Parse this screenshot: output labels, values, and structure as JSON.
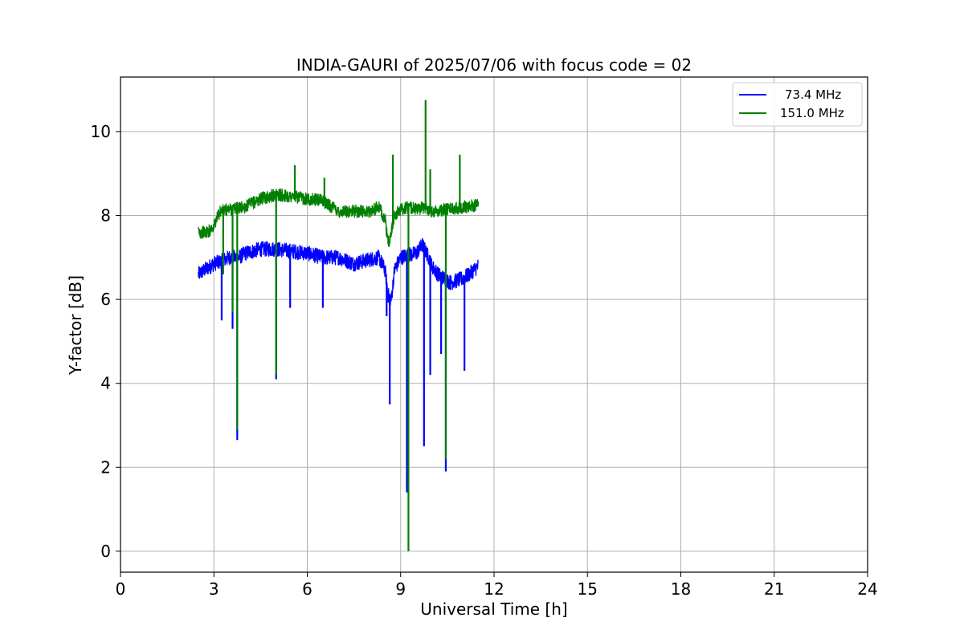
{
  "chart_data": {
    "type": "line",
    "title": "INDIA-GAURI of 2025/07/06 with focus code = 02",
    "xlabel": "Universal Time [h]",
    "ylabel": "Y-factor [dB]",
    "xlim": [
      0,
      24
    ],
    "ylim": [
      -0.5,
      11.3
    ],
    "xticks": [
      0,
      3,
      6,
      9,
      12,
      15,
      18,
      21,
      24
    ],
    "yticks": [
      0,
      2,
      4,
      6,
      8,
      10
    ],
    "grid": true,
    "legend_position": "top-right",
    "series": [
      {
        "name": "73.4 MHz",
        "color": "#0000ff",
        "baseline": {
          "x": [
            2.5,
            2.7,
            3.0,
            3.2,
            3.5,
            3.8,
            4.0,
            4.5,
            5.0,
            5.5,
            6.0,
            6.5,
            7.0,
            7.5,
            8.0,
            8.3,
            8.5,
            8.6,
            8.7,
            8.8,
            9.0,
            9.2,
            9.5,
            9.7,
            9.9,
            10.0,
            10.2,
            10.4,
            10.6,
            10.8,
            11.0,
            11.2,
            11.5
          ],
          "y": [
            6.6,
            6.7,
            6.85,
            6.9,
            7.0,
            7.0,
            7.1,
            7.2,
            7.2,
            7.15,
            7.1,
            7.0,
            7.0,
            6.85,
            6.95,
            7.0,
            6.7,
            6.1,
            6.0,
            6.7,
            7.0,
            7.05,
            7.1,
            7.3,
            7.0,
            6.8,
            6.6,
            6.5,
            6.4,
            6.45,
            6.5,
            6.6,
            6.8
          ]
        },
        "spikes": [
          {
            "x": 3.25,
            "y": 5.5
          },
          {
            "x": 3.6,
            "y": 5.3
          },
          {
            "x": 3.75,
            "y": 2.65
          },
          {
            "x": 5.0,
            "y": 4.1
          },
          {
            "x": 5.45,
            "y": 5.8
          },
          {
            "x": 6.5,
            "y": 5.8
          },
          {
            "x": 8.55,
            "y": 5.6
          },
          {
            "x": 8.65,
            "y": 3.5
          },
          {
            "x": 9.2,
            "y": 1.4
          },
          {
            "x": 9.75,
            "y": 2.5
          },
          {
            "x": 9.95,
            "y": 4.2
          },
          {
            "x": 10.3,
            "y": 4.7
          },
          {
            "x": 10.45,
            "y": 1.9
          },
          {
            "x": 11.05,
            "y": 4.3
          }
        ],
        "noise_amplitude": 0.18
      },
      {
        "name": "151.0 MHz",
        "color": "#008000",
        "baseline": {
          "x": [
            2.5,
            2.8,
            3.0,
            3.2,
            3.5,
            4.0,
            4.5,
            5.0,
            5.5,
            6.0,
            6.5,
            7.0,
            7.5,
            8.0,
            8.3,
            8.5,
            8.6,
            8.7,
            8.8,
            9.0,
            9.3,
            9.5,
            9.8,
            10.0,
            10.5,
            11.0,
            11.5
          ],
          "y": [
            7.6,
            7.6,
            7.75,
            8.1,
            8.15,
            8.2,
            8.4,
            8.5,
            8.45,
            8.4,
            8.35,
            8.1,
            8.1,
            8.1,
            8.2,
            7.9,
            7.3,
            7.6,
            8.0,
            8.15,
            8.2,
            8.15,
            8.2,
            8.1,
            8.15,
            8.2,
            8.25
          ]
        },
        "spikes": [
          {
            "x": 3.3,
            "y": 6.6
          },
          {
            "x": 3.6,
            "y": 5.7
          },
          {
            "x": 3.75,
            "y": 2.9
          },
          {
            "x": 5.0,
            "y": 4.2
          },
          {
            "x": 5.6,
            "y": 9.2
          },
          {
            "x": 6.55,
            "y": 8.9
          },
          {
            "x": 8.75,
            "y": 9.45
          },
          {
            "x": 9.25,
            "y": 0.0
          },
          {
            "x": 9.8,
            "y": 10.75
          },
          {
            "x": 9.95,
            "y": 9.1
          },
          {
            "x": 10.45,
            "y": 2.2
          },
          {
            "x": 10.9,
            "y": 9.45
          }
        ],
        "noise_amplitude": 0.15
      }
    ]
  }
}
